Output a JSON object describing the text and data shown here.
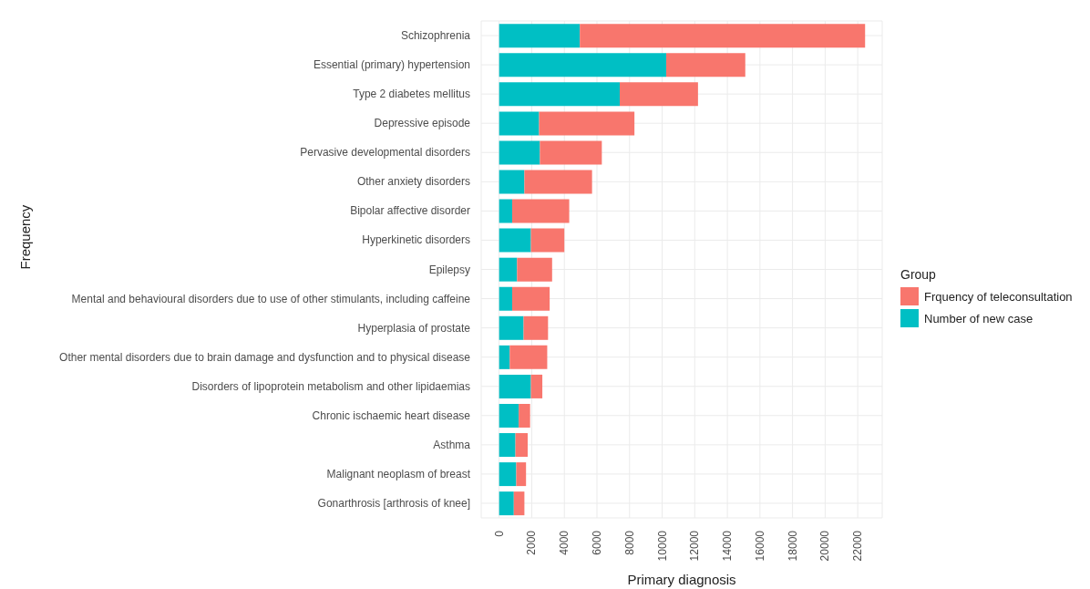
{
  "chart_data": {
    "type": "bar",
    "orientation": "horizontal",
    "stacked": true,
    "categories": [
      "Schizophrenia",
      "Essential (primary) hypertension",
      "Type 2 diabetes mellitus",
      "Depressive episode",
      "Pervasive developmental disorders",
      "Other anxiety disorders",
      "Bipolar affective disorder",
      "Hyperkinetic disorders",
      "Epilepsy",
      "Mental and behavioural disorders due to use of other stimulants, including caffeine",
      "Hyperplasia of prostate",
      "Other mental disorders due to brain damage and dysfunction and to physical disease",
      "Disorders of lipoprotein metabolism and other lipidaemias",
      "Chronic ischaemic heart disease",
      "Asthma",
      "Malignant neoplasm of breast",
      "Gonarthrosis [arthrosis of knee]"
    ],
    "series": [
      {
        "name": "Number of new case",
        "color": "#00bfc4",
        "values": [
          4950,
          10250,
          7400,
          2450,
          2500,
          1550,
          800,
          1950,
          1100,
          800,
          1500,
          650,
          1950,
          1200,
          1000,
          1050,
          900
        ]
      },
      {
        "name": "Frquency of teleconsultation",
        "color": "#f8766d",
        "values": [
          17500,
          4850,
          4800,
          5850,
          3800,
          4150,
          3500,
          2050,
          2150,
          2300,
          1500,
          2300,
          700,
          700,
          750,
          600,
          650
        ]
      }
    ],
    "xlabel": "Primary diagnosis",
    "ylabel": "Frequency",
    "legend_title": "Group",
    "legend": "right",
    "grid": true,
    "xlim": [
      -1100,
      23500
    ],
    "xticks": [
      0,
      2000,
      4000,
      6000,
      8000,
      10000,
      12000,
      14000,
      16000,
      18000,
      20000,
      22000
    ]
  }
}
